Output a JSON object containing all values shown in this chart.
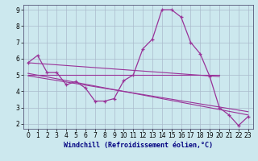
{
  "xlabel": "Windchill (Refroidissement éolien,°C)",
  "background_color": "#cce8ee",
  "grid_color": "#aabbcc",
  "line_color": "#993399",
  "xlim": [
    -0.5,
    23.5
  ],
  "ylim": [
    1.7,
    9.3
  ],
  "yticks": [
    2,
    3,
    4,
    5,
    6,
    7,
    8,
    9
  ],
  "xticks": [
    0,
    1,
    2,
    3,
    4,
    5,
    6,
    7,
    8,
    9,
    10,
    11,
    12,
    13,
    14,
    15,
    16,
    17,
    18,
    19,
    20,
    21,
    22,
    23
  ],
  "series1_x": [
    0,
    1,
    2,
    3,
    4,
    5,
    6,
    7,
    8,
    9,
    10,
    11,
    12,
    13,
    14,
    15,
    16,
    17,
    18,
    19,
    20,
    21,
    22,
    23
  ],
  "series1_y": [
    5.75,
    6.2,
    5.15,
    5.15,
    4.4,
    4.6,
    4.2,
    3.4,
    3.4,
    3.55,
    4.65,
    5.0,
    6.6,
    7.2,
    9.0,
    9.0,
    8.55,
    7.0,
    6.3,
    4.9,
    3.0,
    2.55,
    1.9,
    2.45
  ],
  "line2_x": [
    0,
    20
  ],
  "line2_y": [
    5.75,
    4.9
  ],
  "line3_x": [
    0,
    23
  ],
  "line3_y": [
    5.1,
    2.55
  ],
  "line4_x": [
    0,
    23
  ],
  "line4_y": [
    4.95,
    2.75
  ],
  "hline_x": [
    0,
    20
  ],
  "hline_y": [
    5.0,
    5.0
  ],
  "xlabel_color": "#000080",
  "xlabel_fontsize": 6,
  "tick_fontsize": 5.5,
  "spine_color": "#555577"
}
